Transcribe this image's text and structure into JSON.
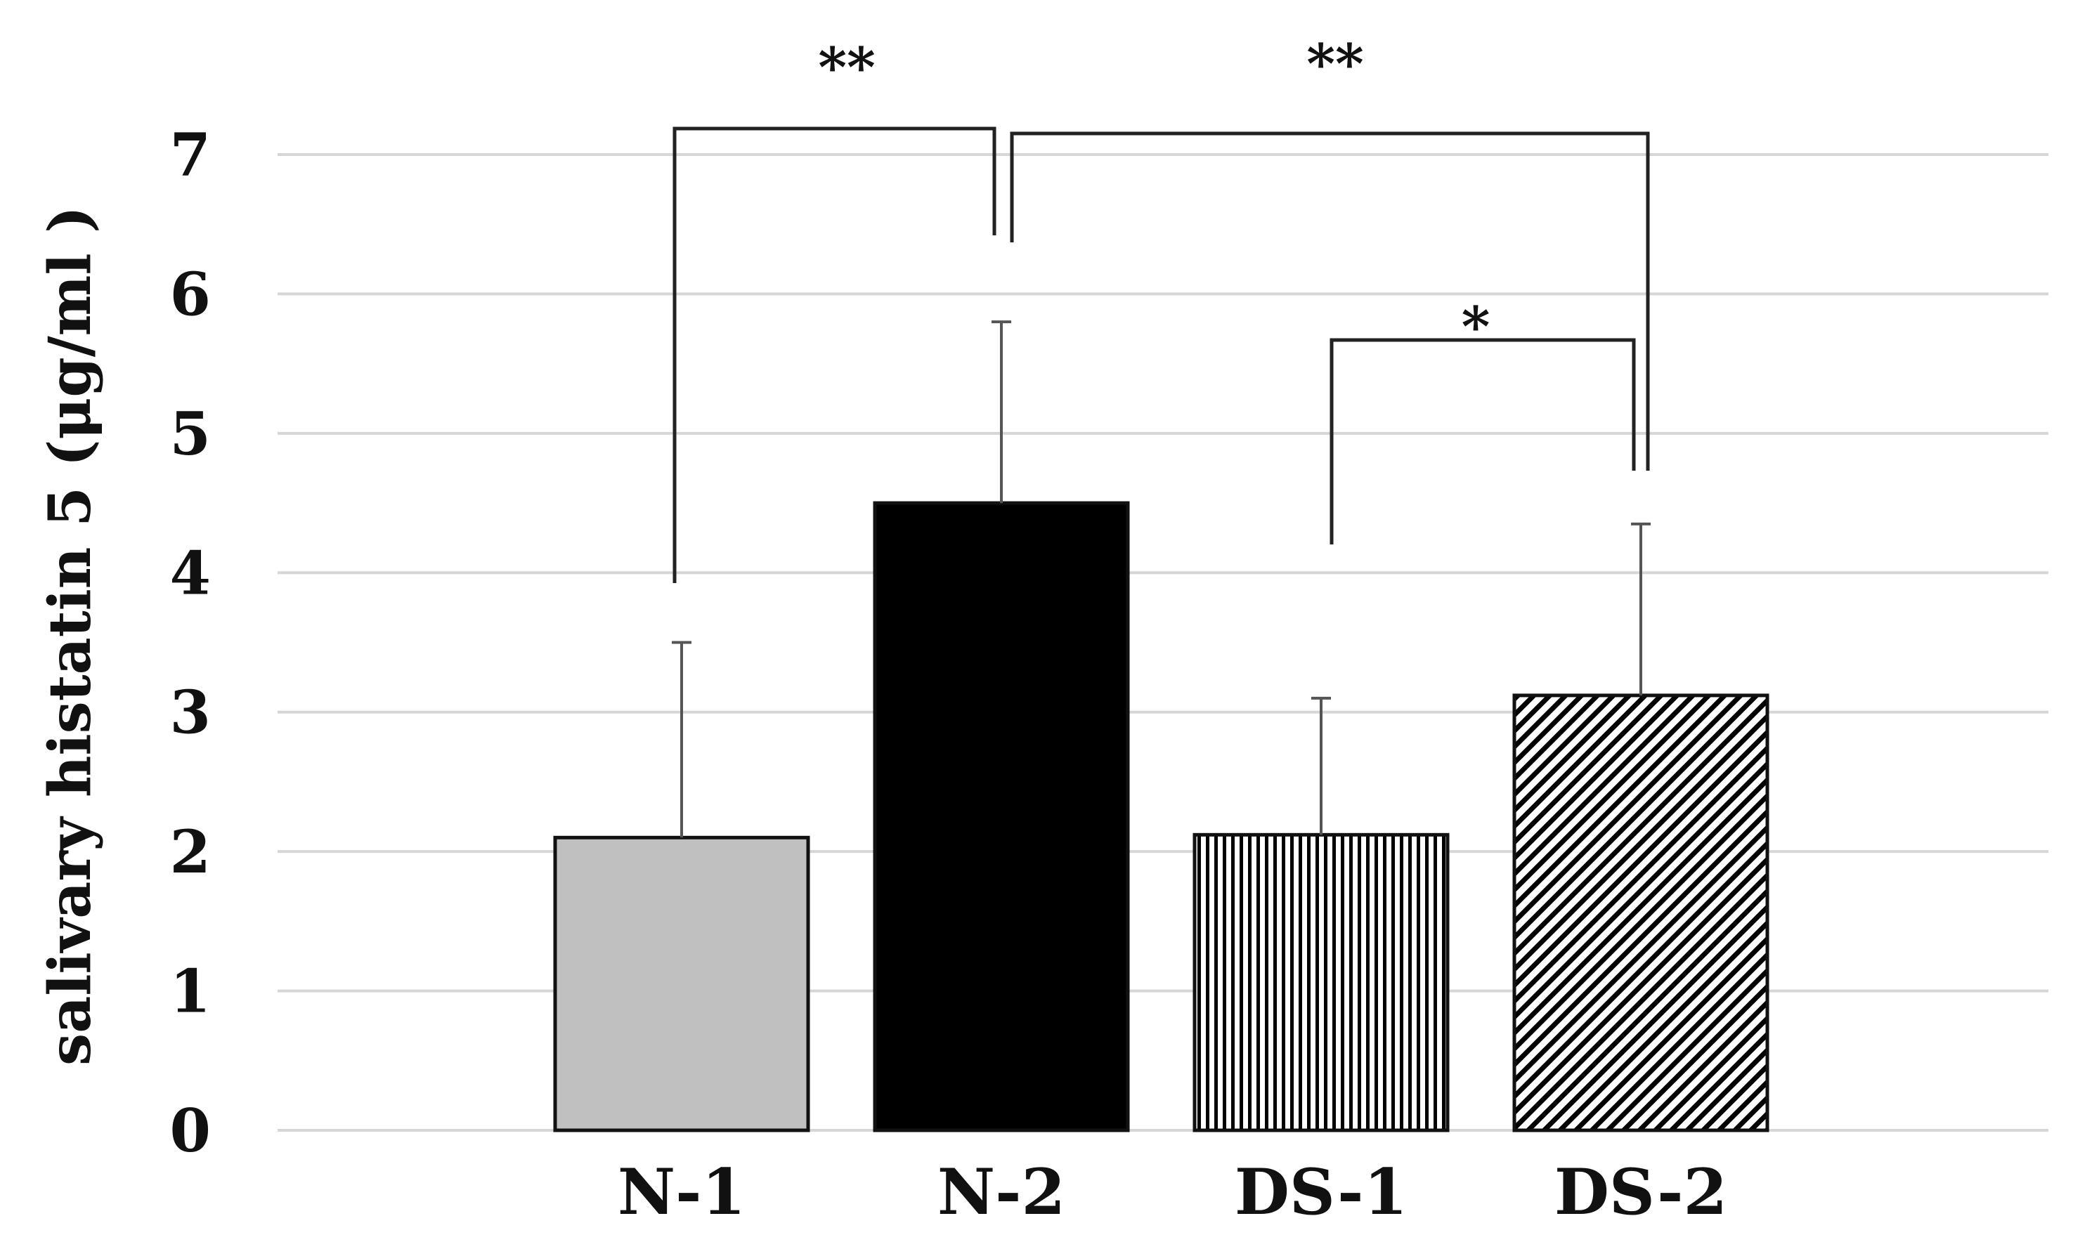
{
  "chart_data": {
    "type": "bar",
    "title": "",
    "xlabel": "",
    "ylabel": "salivary histatin 5 (μg/ml )",
    "ylim": [
      0,
      7
    ],
    "yticks": [
      "0",
      "1",
      "2",
      "3",
      "4",
      "5",
      "6",
      "7"
    ],
    "grid": true,
    "categories": [
      "N-1",
      "N-2",
      "DS-1",
      "DS-2"
    ],
    "values": [
      2.1,
      4.5,
      2.12,
      3.12
    ],
    "error_upper": [
      3.5,
      5.8,
      3.1,
      4.35
    ],
    "fills": [
      {
        "style": "solid",
        "color": "#c0c0c0"
      },
      {
        "style": "solid",
        "color": "#000000"
      },
      {
        "style": "vertical-stripes",
        "color": "#000000"
      },
      {
        "style": "diagonal-stripes",
        "color": "#000000"
      }
    ],
    "significance": [
      {
        "from": "N-1",
        "to": "N-2",
        "label": "**",
        "level": 7.2
      },
      {
        "from": "N-2",
        "to": "DS-2",
        "label": "**",
        "level": 7.2
      },
      {
        "from": "DS-1",
        "to": "DS-2",
        "label": "*",
        "level": 5.7
      }
    ]
  }
}
